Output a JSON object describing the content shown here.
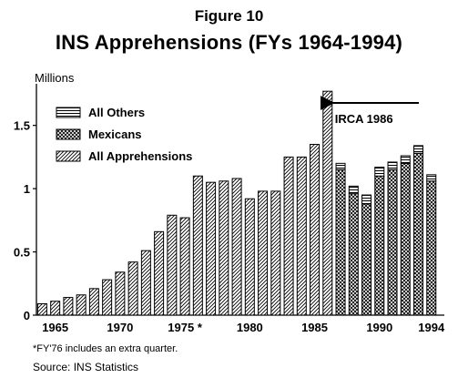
{
  "figure_label": "Figure 10",
  "footnote": "*FY'76 includes an extra quarter.",
  "source": "Source: INS Statistics",
  "colors": {
    "ink": "#000000",
    "paper": "#ffffff"
  },
  "chart_data": {
    "type": "bar",
    "title": "INS Apprehensions (FYs 1964-1994)",
    "ylabel": "Millions",
    "xlabel": "",
    "ylim": [
      0,
      1.8
    ],
    "grid": false,
    "legend_position": "top-left",
    "yticks": [
      0,
      0.5,
      1,
      1.5
    ],
    "ytick_labels": [
      "0",
      "0.5",
      "1",
      "1.5"
    ],
    "x": [
      1964,
      1965,
      1966,
      1967,
      1968,
      1969,
      1970,
      1971,
      1972,
      1973,
      1974,
      1975,
      1976,
      1977,
      1978,
      1979,
      1980,
      1981,
      1982,
      1983,
      1984,
      1985,
      1986,
      1987,
      1988,
      1989,
      1990,
      1991,
      1992,
      1993,
      1994
    ],
    "xtick_labels": [
      {
        "x": 1965,
        "label": "1965"
      },
      {
        "x": 1970,
        "label": "1970"
      },
      {
        "x": 1975,
        "label": "1975 *"
      },
      {
        "x": 1980,
        "label": "1980"
      },
      {
        "x": 1985,
        "label": "1985"
      },
      {
        "x": 1990,
        "label": "1990"
      },
      {
        "x": 1994,
        "label": "1994"
      }
    ],
    "legend": [
      {
        "key": "others",
        "label": "All Others",
        "pattern": "hstripes"
      },
      {
        "key": "mexicans",
        "label": "Mexicans",
        "pattern": "crosshatch"
      },
      {
        "key": "all",
        "label": "All Apprehensions",
        "pattern": "diag"
      }
    ],
    "series": [
      {
        "name": "All Apprehensions",
        "key": "all",
        "values": [
          0.09,
          0.11,
          0.14,
          0.16,
          0.21,
          0.28,
          0.34,
          0.42,
          0.51,
          0.66,
          0.79,
          0.77,
          1.1,
          1.05,
          1.06,
          1.08,
          0.92,
          0.98,
          0.98,
          1.25,
          1.25,
          1.35,
          1.77,
          null,
          null,
          null,
          null,
          null,
          null,
          null,
          null
        ]
      },
      {
        "name": "Mexicans",
        "key": "mexicans",
        "values": [
          null,
          null,
          null,
          null,
          null,
          null,
          null,
          null,
          null,
          null,
          null,
          null,
          null,
          null,
          null,
          null,
          null,
          null,
          null,
          null,
          null,
          null,
          null,
          1.15,
          0.96,
          0.88,
          1.1,
          1.15,
          1.2,
          1.28,
          1.06
        ]
      },
      {
        "name": "All Others",
        "key": "others",
        "values": [
          null,
          null,
          null,
          null,
          null,
          null,
          null,
          null,
          null,
          null,
          null,
          null,
          null,
          null,
          null,
          null,
          null,
          null,
          null,
          null,
          null,
          null,
          null,
          0.05,
          0.06,
          0.07,
          0.07,
          0.06,
          0.06,
          0.06,
          0.05
        ]
      }
    ],
    "annotations": [
      {
        "text": "IRCA 1986",
        "x": 1986
      }
    ]
  }
}
